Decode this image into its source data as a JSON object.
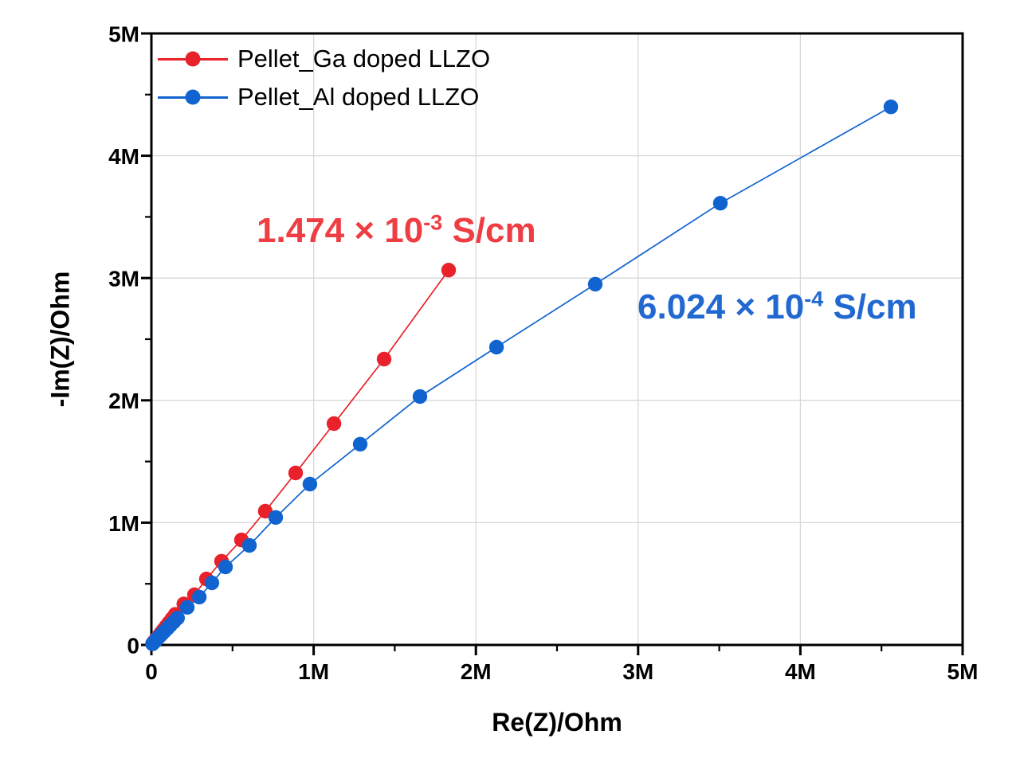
{
  "chart_data": {
    "type": "scatter",
    "title": "",
    "xlabel": "Re(Z)/Ohm",
    "ylabel": "-Im(Z)/Ohm",
    "xlim": [
      0,
      5000000
    ],
    "ylim": [
      0,
      5000000
    ],
    "grid": true,
    "grid_color": "#d8d8d8",
    "axis_color": "#000000",
    "legend_position": "top-left",
    "x_ticks": [
      {
        "value": 0,
        "label": "0"
      },
      {
        "value": 1000000,
        "label": "1M"
      },
      {
        "value": 2000000,
        "label": "2M"
      },
      {
        "value": 3000000,
        "label": "3M"
      },
      {
        "value": 4000000,
        "label": "4M"
      },
      {
        "value": 5000000,
        "label": "5M"
      }
    ],
    "y_ticks": [
      {
        "value": 0,
        "label": "0"
      },
      {
        "value": 1000000,
        "label": "1M"
      },
      {
        "value": 2000000,
        "label": "2M"
      },
      {
        "value": 3000000,
        "label": "3M"
      },
      {
        "value": 4000000,
        "label": "4M"
      },
      {
        "value": 5000000,
        "label": "5M"
      }
    ],
    "minor_tick_step": 500000,
    "series": [
      {
        "name": "Pellet_Ga doped LLZO",
        "color": "#e9212a",
        "marker": "circle",
        "points": [
          [
            9000,
            14000
          ],
          [
            18000,
            29000
          ],
          [
            27000,
            44000
          ],
          [
            37000,
            60000
          ],
          [
            48000,
            79000
          ],
          [
            60000,
            100000
          ],
          [
            74000,
            124000
          ],
          [
            90000,
            151000
          ],
          [
            107000,
            181000
          ],
          [
            126000,
            214000
          ],
          [
            147000,
            250000
          ],
          [
            200000,
            335000
          ],
          [
            265000,
            410000
          ],
          [
            339000,
            540000
          ],
          [
            432000,
            684000
          ],
          [
            555000,
            859000
          ],
          [
            702000,
            1094000
          ],
          [
            889000,
            1406000
          ],
          [
            1125000,
            1810000
          ],
          [
            1434000,
            2337000
          ],
          [
            1832000,
            3065000
          ]
        ]
      },
      {
        "name": "Pellet_Al doped LLZO",
        "color": "#1164cf",
        "marker": "circle",
        "points": [
          [
            7000,
            9000
          ],
          [
            14000,
            19000
          ],
          [
            22000,
            31000
          ],
          [
            31000,
            44000
          ],
          [
            41000,
            58000
          ],
          [
            53000,
            74000
          ],
          [
            66000,
            92000
          ],
          [
            81000,
            112000
          ],
          [
            98000,
            135000
          ],
          [
            117000,
            161000
          ],
          [
            138000,
            189000
          ],
          [
            161000,
            220000
          ],
          [
            221000,
            308000
          ],
          [
            295000,
            391000
          ],
          [
            373000,
            508000
          ],
          [
            457000,
            638000
          ],
          [
            604000,
            814000
          ],
          [
            766000,
            1042000
          ],
          [
            977000,
            1315000
          ],
          [
            1287000,
            1641000
          ],
          [
            1655000,
            2031000
          ],
          [
            2127000,
            2435000
          ],
          [
            2736000,
            2950000
          ],
          [
            3507000,
            3612000
          ],
          [
            4558000,
            4400000
          ]
        ]
      }
    ],
    "annotations": [
      {
        "base": "1.474 × 10",
        "exponent": "-3",
        "suffix": " S/cm",
        "color": "#ee3e43"
      },
      {
        "base": "6.024 × 10",
        "exponent": "-4",
        "suffix": " S/cm",
        "color": "#2168d1"
      }
    ]
  }
}
